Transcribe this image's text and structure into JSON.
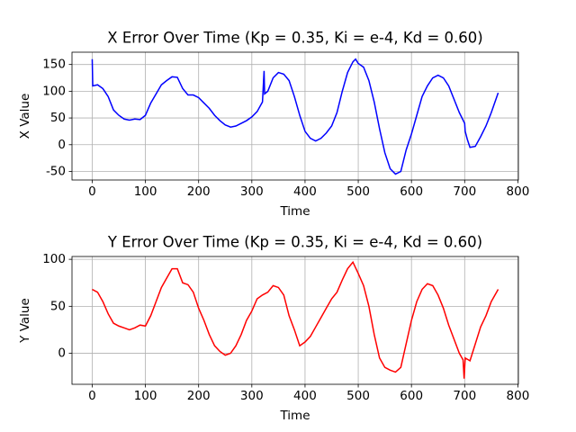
{
  "chart_data": [
    {
      "type": "line",
      "title": "X Error Over Time (Kp = 0.35, Ki = e-4, Kd = 0.60)",
      "xlabel": "Time",
      "ylabel": "X Value",
      "x": [
        0,
        1,
        10,
        20,
        30,
        40,
        50,
        60,
        70,
        80,
        90,
        100,
        110,
        120,
        130,
        140,
        150,
        160,
        170,
        180,
        190,
        200,
        210,
        220,
        230,
        240,
        250,
        260,
        270,
        280,
        290,
        300,
        310,
        320,
        323,
        324,
        330,
        340,
        350,
        360,
        370,
        380,
        390,
        400,
        410,
        420,
        430,
        440,
        450,
        460,
        470,
        480,
        490,
        495,
        500,
        510,
        520,
        530,
        540,
        550,
        560,
        570,
        580,
        585,
        590,
        600,
        610,
        620,
        630,
        640,
        650,
        660,
        670,
        680,
        690,
        700,
        701,
        705,
        710,
        720,
        730,
        740,
        750,
        763
      ],
      "series": [
        {
          "color": "#0000ff",
          "values": [
            160,
            110,
            112,
            105,
            90,
            65,
            55,
            48,
            46,
            48,
            47,
            55,
            78,
            95,
            112,
            120,
            127,
            126,
            105,
            93,
            93,
            88,
            78,
            68,
            55,
            45,
            37,
            33,
            35,
            40,
            45,
            52,
            62,
            80,
            138,
            95,
            100,
            125,
            135,
            132,
            120,
            90,
            55,
            25,
            12,
            7,
            12,
            22,
            35,
            60,
            100,
            135,
            155,
            160,
            152,
            145,
            120,
            80,
            30,
            -15,
            -45,
            -55,
            -50,
            -30,
            -10,
            20,
            55,
            90,
            110,
            125,
            130,
            125,
            110,
            85,
            60,
            40,
            25,
            10,
            -5,
            -3,
            15,
            35,
            60,
            97
          ]
        }
      ],
      "xlim": [
        -38,
        801
      ],
      "xticks": [
        0,
        100,
        200,
        300,
        400,
        500,
        600,
        700,
        800
      ],
      "ylim": [
        -66,
        173
      ],
      "yticks": [
        -50,
        0,
        50,
        100,
        150
      ],
      "grid": true
    },
    {
      "type": "line",
      "title": "Y Error Over Time (Kp = 0.35, Ki = e-4, Kd = 0.60)",
      "xlabel": "Time",
      "ylabel": "Y Value",
      "x": [
        0,
        10,
        20,
        30,
        40,
        50,
        60,
        70,
        80,
        90,
        100,
        110,
        120,
        130,
        140,
        150,
        160,
        170,
        180,
        190,
        200,
        210,
        220,
        230,
        240,
        250,
        260,
        270,
        280,
        290,
        300,
        310,
        320,
        330,
        340,
        350,
        360,
        370,
        380,
        390,
        400,
        410,
        420,
        430,
        440,
        450,
        460,
        470,
        480,
        490,
        500,
        510,
        520,
        530,
        540,
        550,
        560,
        570,
        580,
        590,
        600,
        610,
        620,
        630,
        640,
        650,
        660,
        670,
        680,
        690,
        697,
        699,
        701,
        710,
        720,
        730,
        740,
        750,
        763
      ],
      "series": [
        {
          "color": "#ff0000",
          "values": [
            68,
            65,
            55,
            42,
            32,
            29,
            27,
            25,
            27,
            30,
            29,
            40,
            55,
            70,
            80,
            90,
            90,
            75,
            73,
            65,
            48,
            35,
            20,
            8,
            2,
            -2,
            0,
            8,
            20,
            35,
            45,
            58,
            62,
            65,
            72,
            70,
            62,
            40,
            25,
            8,
            12,
            18,
            28,
            38,
            48,
            58,
            65,
            78,
            90,
            97,
            85,
            72,
            50,
            20,
            -5,
            -15,
            -18,
            -20,
            -15,
            10,
            35,
            55,
            68,
            74,
            72,
            62,
            48,
            30,
            15,
            0,
            -7,
            -27,
            -5,
            -8,
            10,
            28,
            40,
            55,
            68
          ]
        }
      ],
      "xlim": [
        -38,
        801
      ],
      "xticks": [
        0,
        100,
        200,
        300,
        400,
        500,
        600,
        700,
        800
      ],
      "ylim": [
        -33,
        103
      ],
      "yticks": [
        0,
        50,
        100
      ],
      "grid": true
    }
  ]
}
